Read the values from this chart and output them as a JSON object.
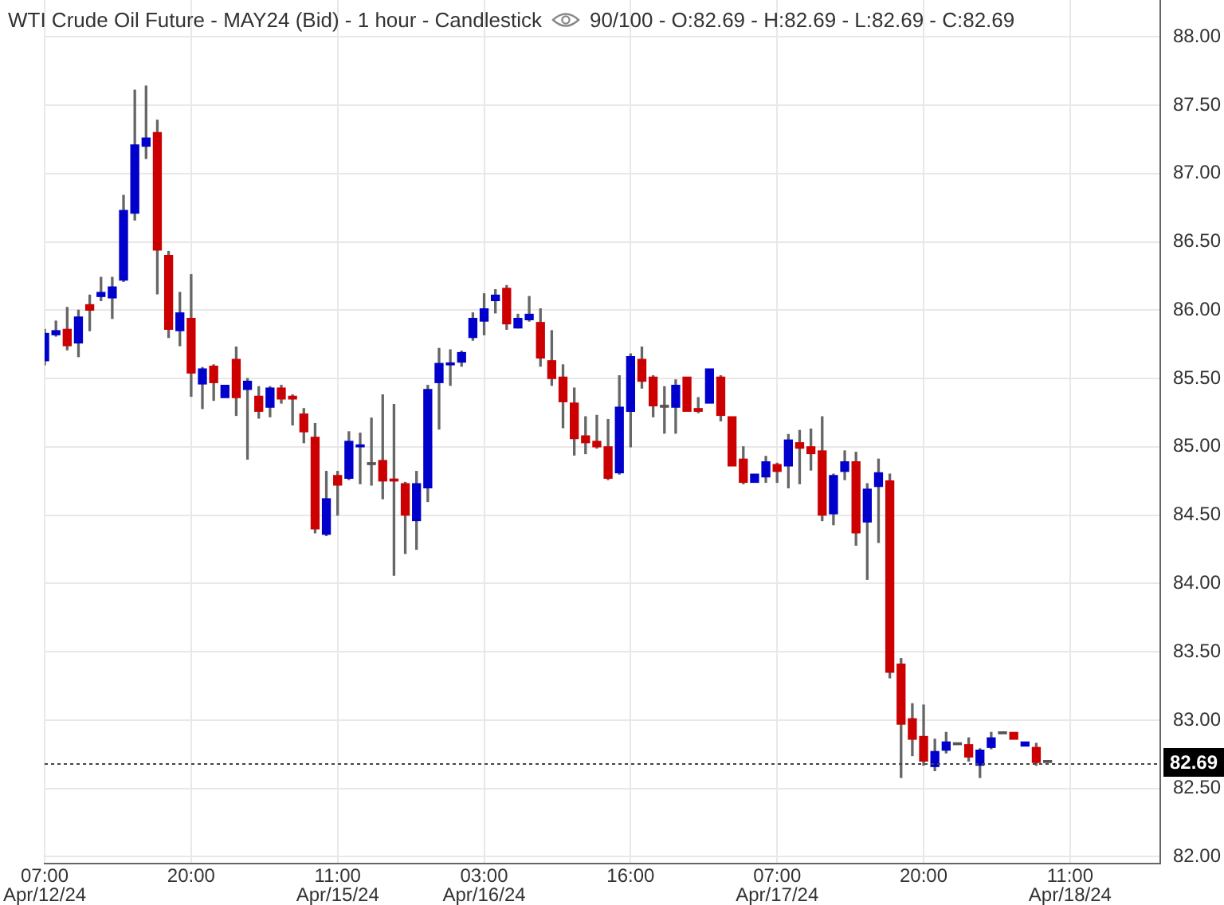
{
  "chart_data": {
    "type": "candlestick",
    "title": "WTI Crude Oil Future - MAY24 (Bid) - 1 hour - Candlestick",
    "subtitle": "90/100 - O:82.69 - H:82.69 - L:82.69 - C:82.69",
    "categories": [
      "07:00\nApr/12/24",
      null,
      null,
      null,
      null,
      null,
      null,
      null,
      null,
      null,
      null,
      null,
      null,
      "20:00",
      null,
      null,
      null,
      null,
      null,
      null,
      null,
      null,
      null,
      null,
      null,
      null,
      "11:00\nApr/15/24",
      null,
      null,
      null,
      null,
      null,
      null,
      null,
      null,
      null,
      null,
      null,
      null,
      "03:00\nApr/16/24",
      null,
      null,
      null,
      null,
      null,
      null,
      null,
      null,
      null,
      null,
      null,
      null,
      "16:00",
      null,
      null,
      null,
      null,
      null,
      null,
      null,
      null,
      null,
      null,
      null,
      null,
      "07:00\nApr/17/24",
      null,
      null,
      null,
      null,
      null,
      null,
      null,
      null,
      null,
      null,
      null,
      null,
      "20:00",
      null,
      null,
      null,
      null,
      null,
      null,
      null,
      null,
      null,
      null,
      null,
      null,
      "11:00\nApr/18/24",
      null,
      null,
      null,
      null,
      null,
      null,
      null,
      null
    ],
    "ohlc": [
      [
        85.63,
        85.86,
        85.6,
        85.83
      ],
      [
        85.82,
        85.92,
        85.81,
        85.85
      ],
      [
        85.86,
        86.02,
        85.71,
        85.74
      ],
      [
        85.76,
        86.0,
        85.66,
        85.95
      ],
      [
        86.04,
        86.11,
        85.85,
        86.0
      ],
      [
        86.1,
        86.24,
        86.07,
        86.13
      ],
      [
        86.09,
        86.24,
        85.94,
        86.17
      ],
      [
        86.22,
        86.84,
        86.21,
        86.73
      ],
      [
        86.71,
        87.61,
        86.66,
        87.21
      ],
      [
        87.2,
        87.64,
        87.11,
        87.26
      ],
      [
        87.3,
        87.39,
        86.12,
        86.44
      ],
      [
        86.4,
        86.43,
        85.8,
        85.86
      ],
      [
        85.85,
        86.13,
        85.74,
        85.98
      ],
      [
        85.94,
        86.26,
        85.37,
        85.54
      ],
      [
        85.46,
        85.58,
        85.28,
        85.57
      ],
      [
        85.59,
        85.6,
        85.34,
        85.47
      ],
      [
        85.36,
        85.45,
        85.36,
        85.45
      ],
      [
        85.64,
        85.73,
        85.23,
        85.36
      ],
      [
        85.42,
        85.5,
        84.91,
        85.48
      ],
      [
        85.37,
        85.44,
        85.21,
        85.26
      ],
      [
        85.29,
        85.44,
        85.22,
        85.43
      ],
      [
        85.43,
        85.45,
        85.32,
        85.35
      ],
      [
        85.37,
        85.38,
        85.16,
        85.35
      ],
      [
        85.24,
        85.28,
        85.03,
        85.11
      ],
      [
        85.07,
        85.17,
        84.37,
        84.4
      ],
      [
        84.36,
        84.82,
        84.35,
        84.62
      ],
      [
        84.79,
        84.82,
        84.5,
        84.72
      ],
      [
        84.77,
        85.11,
        84.76,
        85.04
      ],
      [
        85.0,
        85.1,
        84.73,
        85.0
      ],
      [
        84.87,
        85.21,
        84.72,
        84.87
      ],
      [
        84.9,
        85.38,
        84.62,
        84.75
      ],
      [
        84.76,
        85.31,
        84.06,
        84.75
      ],
      [
        84.73,
        84.74,
        84.22,
        84.5
      ],
      [
        84.46,
        84.82,
        84.25,
        84.73
      ],
      [
        84.7,
        85.45,
        84.6,
        85.42
      ],
      [
        85.47,
        85.72,
        85.13,
        85.61
      ],
      [
        85.6,
        85.71,
        85.45,
        85.61
      ],
      [
        85.62,
        85.7,
        85.59,
        85.69
      ],
      [
        85.8,
        85.98,
        85.78,
        85.94
      ],
      [
        85.92,
        86.12,
        85.82,
        86.01
      ],
      [
        86.07,
        86.15,
        85.98,
        86.11
      ],
      [
        86.16,
        86.18,
        85.86,
        85.9
      ],
      [
        85.87,
        85.97,
        85.87,
        85.94
      ],
      [
        85.93,
        86.1,
        85.92,
        85.97
      ],
      [
        85.91,
        86.01,
        85.59,
        85.65
      ],
      [
        85.63,
        85.85,
        85.45,
        85.5
      ],
      [
        85.51,
        85.6,
        85.14,
        85.33
      ],
      [
        85.32,
        85.43,
        84.94,
        85.06
      ],
      [
        85.08,
        85.22,
        84.95,
        85.03
      ],
      [
        85.04,
        85.23,
        84.99,
        85.0
      ],
      [
        85.0,
        85.2,
        84.76,
        84.77
      ],
      [
        84.81,
        85.52,
        84.8,
        85.29
      ],
      [
        85.26,
        85.68,
        85.0,
        85.66
      ],
      [
        85.64,
        85.73,
        85.43,
        85.48
      ],
      [
        85.51,
        85.52,
        85.22,
        85.3
      ],
      [
        85.29,
        85.44,
        85.1,
        85.29
      ],
      [
        85.29,
        85.49,
        85.1,
        85.45
      ],
      [
        85.51,
        85.51,
        85.26,
        85.26
      ],
      [
        85.28,
        85.36,
        85.25,
        85.26
      ],
      [
        85.32,
        85.57,
        85.32,
        85.57
      ],
      [
        85.51,
        85.52,
        85.19,
        85.23
      ],
      [
        85.22,
        85.22,
        84.86,
        84.86
      ],
      [
        84.91,
        85.0,
        84.73,
        84.74
      ],
      [
        84.74,
        84.8,
        84.74,
        84.8
      ],
      [
        84.78,
        84.93,
        84.74,
        84.89
      ],
      [
        84.87,
        84.88,
        84.74,
        84.82
      ],
      [
        84.86,
        85.09,
        84.7,
        85.05
      ],
      [
        85.03,
        85.12,
        84.73,
        84.99
      ],
      [
        85.0,
        85.13,
        84.83,
        84.95
      ],
      [
        84.97,
        85.22,
        84.46,
        84.5
      ],
      [
        84.51,
        84.8,
        84.43,
        84.79
      ],
      [
        84.82,
        84.97,
        84.76,
        84.89
      ],
      [
        84.89,
        84.96,
        84.28,
        84.37
      ],
      [
        84.45,
        84.73,
        84.03,
        84.69
      ],
      [
        84.71,
        84.91,
        84.3,
        84.81
      ],
      [
        84.75,
        84.8,
        83.31,
        83.35
      ],
      [
        83.41,
        83.45,
        82.58,
        82.97
      ],
      [
        83.01,
        83.12,
        82.74,
        82.86
      ],
      [
        82.88,
        83.11,
        82.67,
        82.7
      ],
      [
        82.66,
        82.86,
        82.63,
        82.77
      ],
      [
        82.78,
        82.91,
        82.76,
        82.84
      ],
      [
        82.82,
        82.82,
        82.82,
        82.82
      ],
      [
        82.82,
        82.87,
        82.7,
        82.73
      ],
      [
        82.67,
        82.79,
        82.58,
        82.78
      ],
      [
        82.8,
        82.91,
        82.79,
        82.87
      ],
      [
        82.9,
        82.9,
        82.9,
        82.9
      ],
      [
        82.91,
        82.91,
        82.86,
        82.86
      ],
      [
        82.81,
        82.84,
        82.81,
        82.84
      ],
      [
        82.8,
        82.83,
        82.67,
        82.69
      ],
      [
        82.69,
        82.69,
        82.69,
        82.69
      ],
      null,
      null,
      null,
      null,
      null,
      null,
      null,
      null,
      null,
      null
    ],
    "color": "#666666",
    "colors": [
      "#0000cc",
      "#0000cc",
      "#cc0000",
      "#0000cc",
      "#cc0000",
      "#0000cc",
      "#0000cc",
      "#0000cc",
      "#0000cc",
      "#0000cc",
      "#cc0000",
      "#cc0000",
      "#0000cc",
      "#cc0000",
      "#0000cc",
      "#cc0000",
      "#0000cc",
      "#cc0000",
      "#0000cc",
      "#cc0000",
      "#0000cc",
      "#cc0000",
      "#cc0000",
      "#cc0000",
      "#cc0000",
      "#0000cc",
      "#cc0000",
      "#0000cc",
      "#0000cc",
      "#555555",
      "#cc0000",
      "#cc0000",
      "#cc0000",
      "#0000cc",
      "#0000cc",
      "#0000cc",
      "#0000cc",
      "#0000cc",
      "#0000cc",
      "#0000cc",
      "#0000cc",
      "#cc0000",
      "#0000cc",
      "#0000cc",
      "#cc0000",
      "#cc0000",
      "#cc0000",
      "#cc0000",
      "#cc0000",
      "#cc0000",
      "#cc0000",
      "#0000cc",
      "#0000cc",
      "#cc0000",
      "#cc0000",
      "#555555",
      "#0000cc",
      "#cc0000",
      "#cc0000",
      "#0000cc",
      "#cc0000",
      "#cc0000",
      "#cc0000",
      "#0000cc",
      "#0000cc",
      "#cc0000",
      "#0000cc",
      "#cc0000",
      "#cc0000",
      "#cc0000",
      "#0000cc",
      "#0000cc",
      "#cc0000",
      "#0000cc",
      "#0000cc",
      "#cc0000",
      "#cc0000",
      "#cc0000",
      "#cc0000",
      "#0000cc",
      "#0000cc",
      "#555555",
      "#cc0000",
      "#0000cc",
      "#0000cc",
      "#555555",
      "#cc0000",
      "#0000cc",
      "#cc0000",
      "#555555",
      null,
      null,
      null,
      null,
      null,
      null,
      null,
      null,
      null,
      null
    ],
    "ylim": [
      81.95,
      88.27
    ],
    "yticks": [
      {
        "value": 82,
        "label": "82.00"
      },
      {
        "value": 82.5,
        "label": "82.50"
      },
      {
        "value": 83,
        "label": "83.00"
      },
      {
        "value": 83.5,
        "label": "83.50"
      },
      {
        "value": 84,
        "label": "84.00"
      },
      {
        "value": 84.5,
        "label": "84.50"
      },
      {
        "value": 85,
        "label": "85.00"
      },
      {
        "value": 85.5,
        "label": "85.50"
      },
      {
        "value": 86,
        "label": "86.00"
      },
      {
        "value": 86.5,
        "label": "86.50"
      },
      {
        "value": 87,
        "label": "87.00"
      },
      {
        "value": 87.5,
        "label": "87.50"
      },
      {
        "value": 88,
        "label": "88.00"
      }
    ],
    "grid": true,
    "ref_lines": [
      {
        "axis": "y",
        "value": 82.69,
        "label": "82.69",
        "line_style": "dotted",
        "color": "#444444"
      }
    ]
  }
}
